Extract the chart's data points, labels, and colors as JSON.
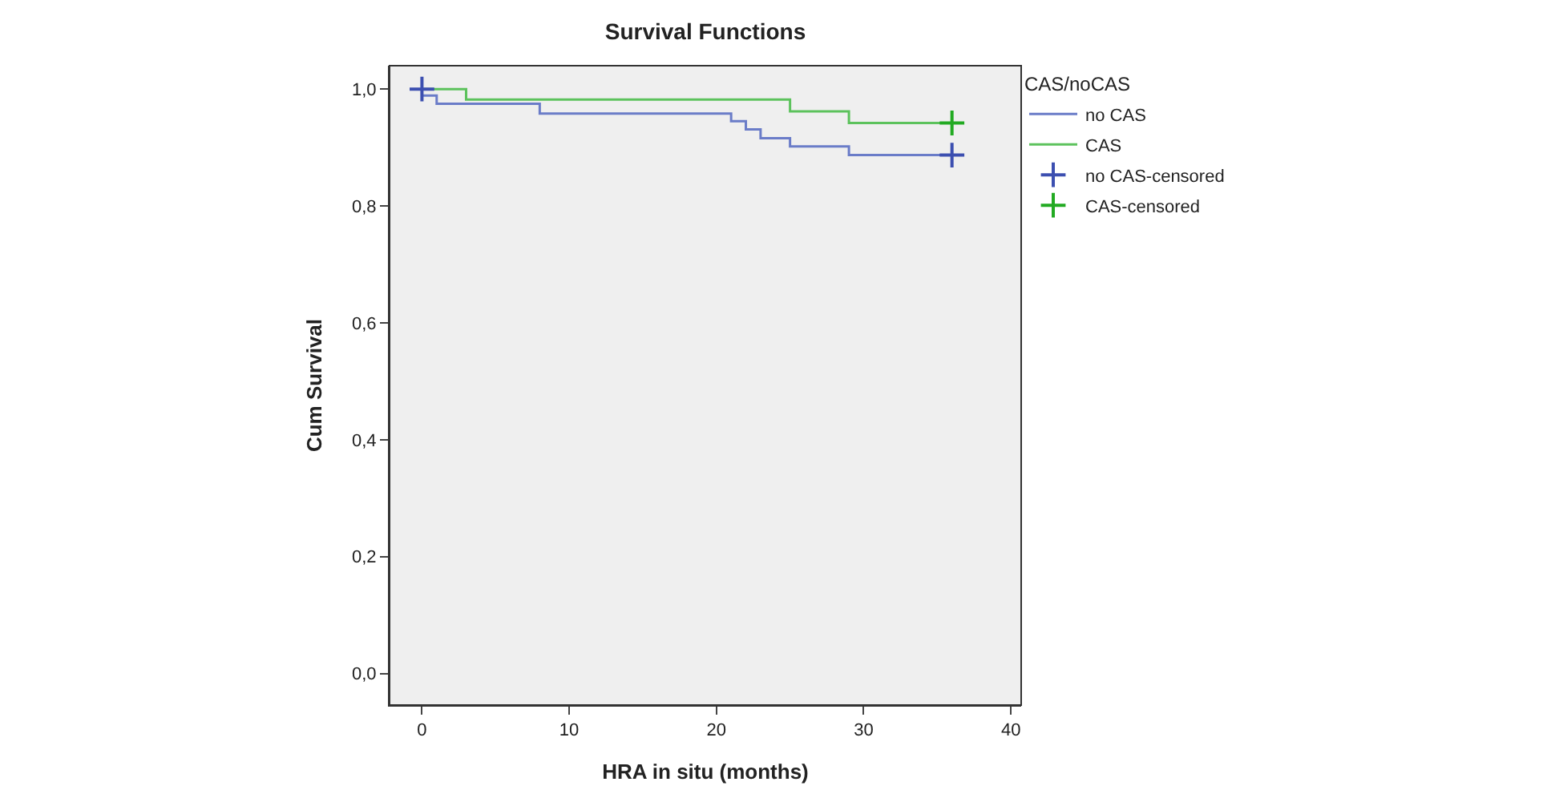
{
  "chart_data": {
    "type": "step",
    "title": "Survival Functions",
    "xlabel": "HRA in situ (months)",
    "ylabel": "Cum Survival",
    "legend_title": "CAS/noCAS",
    "series": [
      {
        "name": "no CAS",
        "color": "#6a7cc8",
        "x": [
          0,
          0,
          1,
          8,
          21,
          22,
          23,
          25,
          29,
          36
        ],
        "values": [
          1.0,
          0.989,
          0.975,
          0.958,
          0.945,
          0.931,
          0.916,
          0.902,
          0.887,
          0.887
        ]
      },
      {
        "name": "CAS",
        "color": "#5cc25c",
        "x": [
          0,
          3,
          25,
          29,
          36
        ],
        "values": [
          1.0,
          0.982,
          0.962,
          0.942,
          0.942
        ]
      },
      {
        "name": "no CAS-censored",
        "type": "scatter",
        "marker": "cross",
        "color": "#3c4fb0",
        "x": [
          0,
          36
        ],
        "values": [
          1.0,
          0.887
        ]
      },
      {
        "name": "CAS-censored",
        "type": "scatter",
        "marker": "cross",
        "color": "#22aa22",
        "x": [
          36
        ],
        "values": [
          0.942
        ]
      }
    ],
    "xlim": [
      -2.2,
      40.7
    ],
    "xticks": [
      0,
      10,
      20,
      30,
      40
    ],
    "ylim": [
      -0.054,
      1.04
    ],
    "yticks": [
      {
        "value": 0,
        "label": "0,0"
      },
      {
        "value": 0.2,
        "label": "0,2"
      },
      {
        "value": 0.4,
        "label": "0,4"
      },
      {
        "value": 0.6,
        "label": "0,6"
      },
      {
        "value": 0.8,
        "label": "0,8"
      },
      {
        "value": 1.0,
        "label": "1,0"
      }
    ],
    "grid": false,
    "legend": "right"
  }
}
